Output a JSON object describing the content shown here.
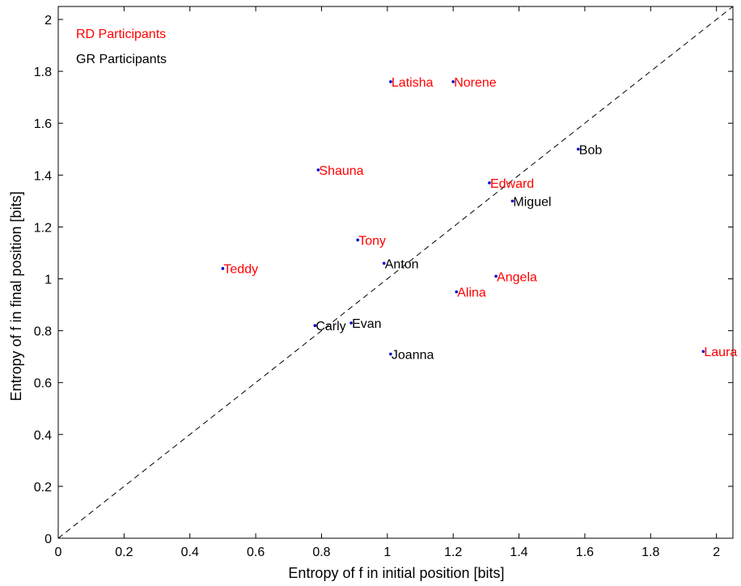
{
  "chart_data": {
    "type": "scatter",
    "xlabel": "Entropy of f in initial position [bits]",
    "ylabel": "Entropy of f in final position [bits]",
    "xlim": [
      0,
      2.05
    ],
    "ylim": [
      0,
      2.05
    ],
    "x_ticks": [
      "0",
      "0.2",
      "0.4",
      "0.6",
      "0.8",
      "1",
      "1.2",
      "1.4",
      "1.6",
      "1.8",
      "2"
    ],
    "y_ticks": [
      "0",
      "0.2",
      "0.4",
      "0.6",
      "0.8",
      "1",
      "1.2",
      "1.4",
      "1.6",
      "1.8",
      "2"
    ],
    "grid": false,
    "legend_position": "top-left",
    "reference_line": {
      "style": "dashed",
      "from": [
        0,
        0
      ],
      "to": [
        2.05,
        2.05
      ],
      "color": "#000000"
    },
    "marker_color": "#0000cc",
    "series": [
      {
        "name": "RD Participants",
        "color": "#ff0000",
        "points": [
          {
            "label": "Latisha",
            "x": 1.01,
            "y": 1.76
          },
          {
            "label": "Norene",
            "x": 1.2,
            "y": 1.76
          },
          {
            "label": "Shauna",
            "x": 0.79,
            "y": 1.42
          },
          {
            "label": "Edward",
            "x": 1.31,
            "y": 1.37
          },
          {
            "label": "Tony",
            "x": 0.91,
            "y": 1.15
          },
          {
            "label": "Teddy",
            "x": 0.5,
            "y": 1.04
          },
          {
            "label": "Angela",
            "x": 1.33,
            "y": 1.01
          },
          {
            "label": "Alina",
            "x": 1.21,
            "y": 0.95
          },
          {
            "label": "Laura",
            "x": 1.96,
            "y": 0.72
          }
        ]
      },
      {
        "name": "GR Participants",
        "color": "#000000",
        "points": [
          {
            "label": "Bob",
            "x": 1.58,
            "y": 1.5
          },
          {
            "label": "Miguel",
            "x": 1.38,
            "y": 1.3
          },
          {
            "label": "Anton",
            "x": 0.99,
            "y": 1.06
          },
          {
            "label": "Carly",
            "x": 0.78,
            "y": 0.82
          },
          {
            "label": "Evan",
            "x": 0.89,
            "y": 0.83
          },
          {
            "label": "Joanna",
            "x": 1.01,
            "y": 0.71
          }
        ]
      }
    ]
  }
}
